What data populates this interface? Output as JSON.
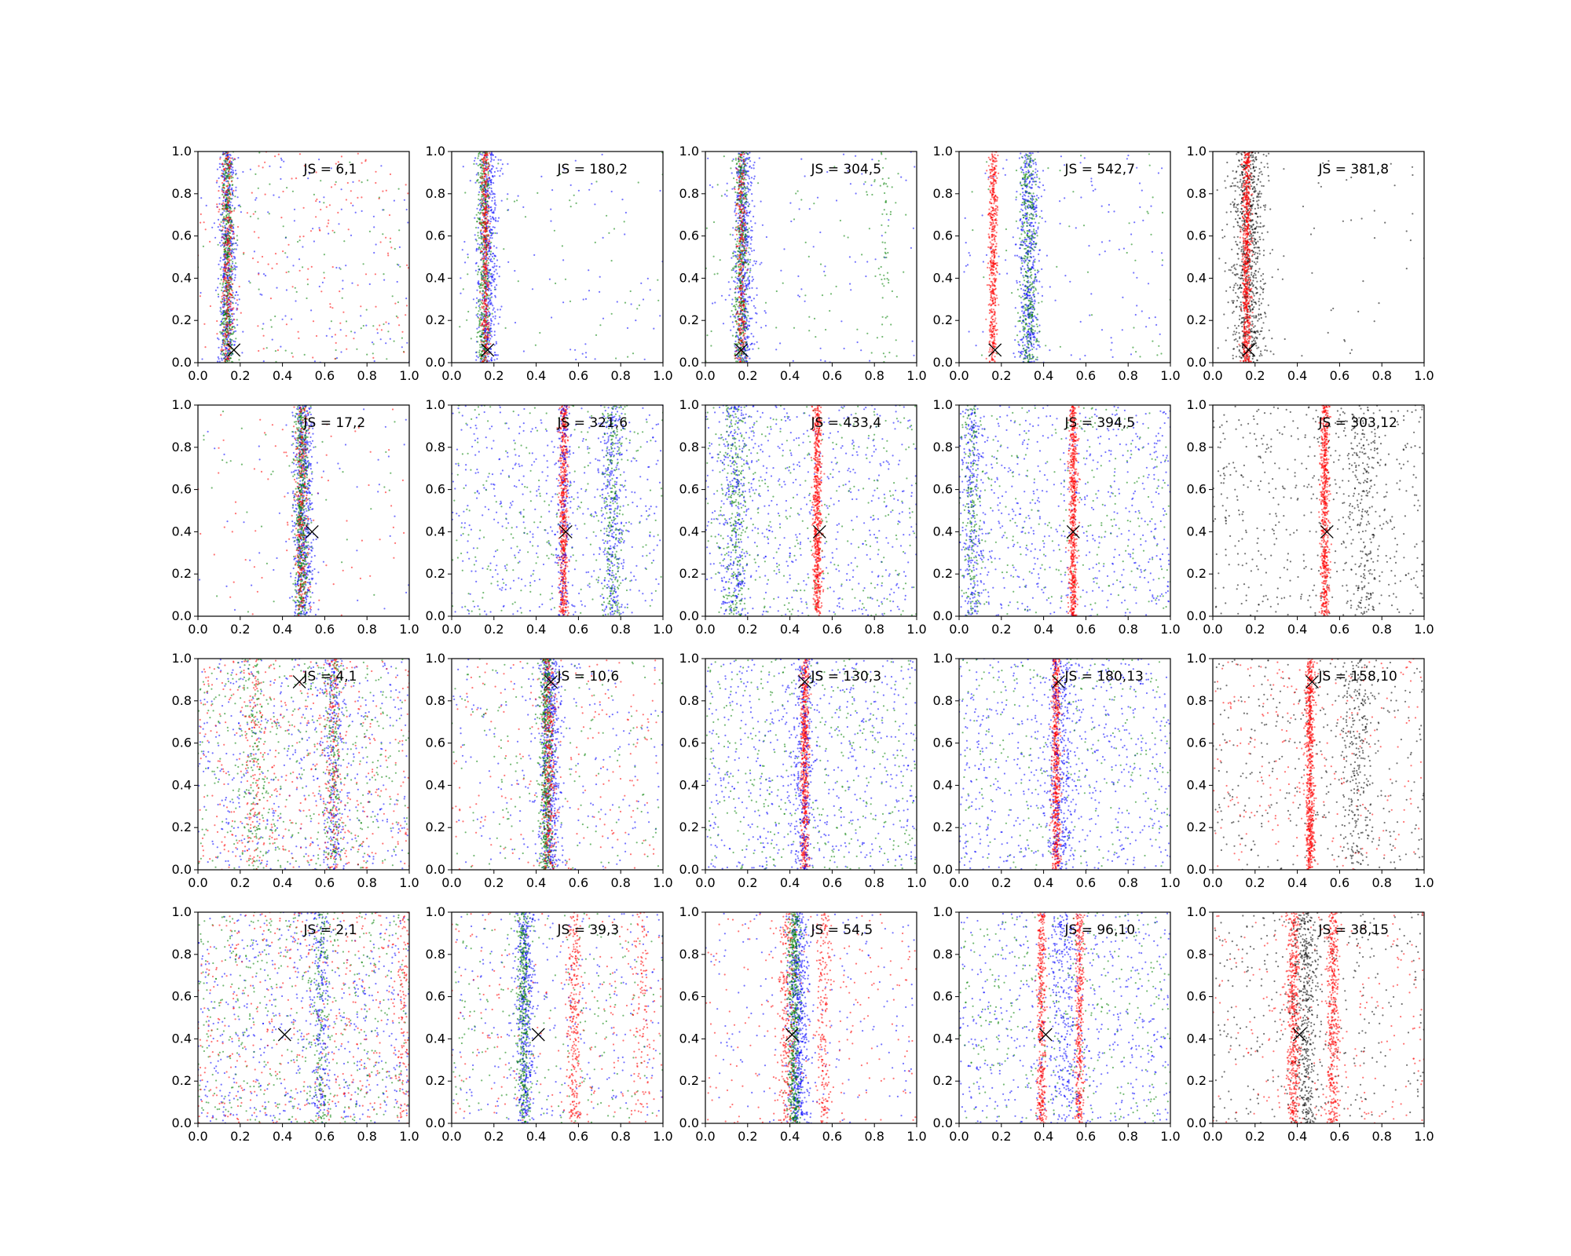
{
  "chart_data": {
    "type": "scatter",
    "rows": 4,
    "cols": 5,
    "xlim": [
      0,
      1
    ],
    "ylim": [
      0,
      1
    ],
    "xticks": [
      "0.0",
      "0.2",
      "0.4",
      "0.6",
      "0.8",
      "1.0"
    ],
    "yticks": [
      "0.0",
      "0.2",
      "0.4",
      "0.6",
      "0.8",
      "1.0"
    ],
    "grid": false,
    "colors": {
      "blue": "#0000ff",
      "green": "#008000",
      "red": "#ff0000",
      "black": "#000000"
    },
    "panels": [
      {
        "label": "JS = 6,1",
        "marker": [
          0.17,
          0.06
        ],
        "bands": [
          {
            "color": "blue",
            "center": 0.14,
            "width": 0.04,
            "n": 520
          },
          {
            "color": "green",
            "center": 0.14,
            "width": 0.03,
            "n": 480
          },
          {
            "color": "red",
            "center": 0.14,
            "width": 0.03,
            "n": 300
          }
        ],
        "background": [
          {
            "color": "blue",
            "n": 120
          },
          {
            "color": "green",
            "n": 90
          },
          {
            "color": "red",
            "n": 160
          }
        ]
      },
      {
        "label": "JS = 180,2",
        "marker": [
          0.17,
          0.06
        ],
        "bands": [
          {
            "color": "blue",
            "center": 0.17,
            "width": 0.05,
            "n": 560
          },
          {
            "color": "green",
            "center": 0.15,
            "width": 0.03,
            "n": 420
          },
          {
            "color": "red",
            "center": 0.16,
            "width": 0.02,
            "n": 380
          }
        ],
        "background": [
          {
            "color": "blue",
            "n": 80
          },
          {
            "color": "green",
            "n": 60
          }
        ]
      },
      {
        "label": "JS = 304,5",
        "marker": [
          0.17,
          0.06
        ],
        "bands": [
          {
            "color": "blue",
            "center": 0.18,
            "width": 0.05,
            "n": 600
          },
          {
            "color": "green",
            "center": 0.17,
            "width": 0.03,
            "n": 460
          },
          {
            "color": "red",
            "center": 0.17,
            "width": 0.02,
            "n": 260
          },
          {
            "color": "green",
            "center": 0.85,
            "width": 0.04,
            "n": 60
          }
        ],
        "background": [
          {
            "color": "blue",
            "n": 90
          },
          {
            "color": "green",
            "n": 70
          }
        ]
      },
      {
        "label": "JS = 542,7",
        "marker": [
          0.17,
          0.06
        ],
        "bands": [
          {
            "color": "red",
            "center": 0.16,
            "width": 0.02,
            "n": 520
          },
          {
            "color": "blue",
            "center": 0.33,
            "width": 0.05,
            "n": 520
          },
          {
            "color": "green",
            "center": 0.33,
            "width": 0.04,
            "n": 360
          }
        ],
        "background": [
          {
            "color": "blue",
            "n": 110
          },
          {
            "color": "green",
            "n": 50
          }
        ]
      },
      {
        "label": "JS = 381,8",
        "marker": [
          0.17,
          0.06
        ],
        "bands": [
          {
            "color": "black",
            "center": 0.17,
            "width": 0.08,
            "n": 820
          },
          {
            "color": "red",
            "center": 0.16,
            "width": 0.02,
            "n": 700
          }
        ],
        "background": [
          {
            "color": "black",
            "n": 60
          }
        ]
      },
      {
        "label": "JS = 17,2",
        "marker": [
          0.54,
          0.4
        ],
        "bands": [
          {
            "color": "blue",
            "center": 0.5,
            "width": 0.05,
            "n": 620
          },
          {
            "color": "green",
            "center": 0.49,
            "width": 0.03,
            "n": 540
          },
          {
            "color": "red",
            "center": 0.49,
            "width": 0.03,
            "n": 260
          }
        ],
        "background": [
          {
            "color": "red",
            "n": 70
          },
          {
            "color": "blue",
            "n": 40
          },
          {
            "color": "green",
            "n": 40
          }
        ]
      },
      {
        "label": "JS = 321,6",
        "marker": [
          0.54,
          0.4
        ],
        "bands": [
          {
            "color": "red",
            "center": 0.53,
            "width": 0.02,
            "n": 620
          },
          {
            "color": "blue",
            "center": 0.76,
            "width": 0.06,
            "n": 320
          },
          {
            "color": "green",
            "center": 0.76,
            "width": 0.05,
            "n": 220
          },
          {
            "color": "blue",
            "center": 0.53,
            "width": 0.04,
            "n": 180
          }
        ],
        "background": [
          {
            "color": "blue",
            "n": 420
          },
          {
            "color": "green",
            "n": 260
          }
        ]
      },
      {
        "label": "JS = 433,4",
        "marker": [
          0.54,
          0.4
        ],
        "bands": [
          {
            "color": "red",
            "center": 0.53,
            "width": 0.02,
            "n": 680
          },
          {
            "color": "green",
            "center": 0.14,
            "width": 0.06,
            "n": 260
          },
          {
            "color": "blue",
            "center": 0.14,
            "width": 0.07,
            "n": 260
          }
        ],
        "background": [
          {
            "color": "blue",
            "n": 520
          },
          {
            "color": "green",
            "n": 320
          }
        ]
      },
      {
        "label": "JS = 394,5",
        "marker": [
          0.54,
          0.4
        ],
        "bands": [
          {
            "color": "red",
            "center": 0.54,
            "width": 0.02,
            "n": 660
          },
          {
            "color": "blue",
            "center": 0.06,
            "width": 0.05,
            "n": 240
          },
          {
            "color": "green",
            "center": 0.06,
            "width": 0.04,
            "n": 160
          }
        ],
        "background": [
          {
            "color": "blue",
            "n": 600
          },
          {
            "color": "green",
            "n": 280
          }
        ]
      },
      {
        "label": "JS = 303,12",
        "marker": [
          0.54,
          0.4
        ],
        "bands": [
          {
            "color": "red",
            "center": 0.53,
            "width": 0.02,
            "n": 660
          },
          {
            "color": "black",
            "center": 0.72,
            "width": 0.08,
            "n": 220
          }
        ],
        "background": [
          {
            "color": "black",
            "n": 520
          }
        ]
      },
      {
        "label": "JS = 4,1",
        "marker": [
          0.48,
          0.89
        ],
        "bands": [
          {
            "color": "blue",
            "center": 0.64,
            "width": 0.05,
            "n": 220
          },
          {
            "color": "green",
            "center": 0.64,
            "width": 0.04,
            "n": 180
          },
          {
            "color": "red",
            "center": 0.64,
            "width": 0.04,
            "n": 160
          },
          {
            "color": "green",
            "center": 0.27,
            "width": 0.06,
            "n": 160
          },
          {
            "color": "red",
            "center": 0.27,
            "width": 0.06,
            "n": 120
          }
        ],
        "background": [
          {
            "color": "blue",
            "n": 500
          },
          {
            "color": "green",
            "n": 420
          },
          {
            "color": "red",
            "n": 420
          }
        ]
      },
      {
        "label": "JS = 10,6",
        "marker": [
          0.47,
          0.89
        ],
        "bands": [
          {
            "color": "blue",
            "center": 0.47,
            "width": 0.05,
            "n": 600
          },
          {
            "color": "green",
            "center": 0.45,
            "width": 0.03,
            "n": 520
          },
          {
            "color": "red",
            "center": 0.46,
            "width": 0.03,
            "n": 300
          }
        ],
        "background": [
          {
            "color": "blue",
            "n": 200
          },
          {
            "color": "green",
            "n": 160
          },
          {
            "color": "red",
            "n": 200
          }
        ]
      },
      {
        "label": "JS = 130,3",
        "marker": [
          0.47,
          0.89
        ],
        "bands": [
          {
            "color": "red",
            "center": 0.47,
            "width": 0.02,
            "n": 620
          },
          {
            "color": "blue",
            "center": 0.46,
            "width": 0.06,
            "n": 300
          }
        ],
        "background": [
          {
            "color": "blue",
            "n": 560
          },
          {
            "color": "green",
            "n": 380
          }
        ]
      },
      {
        "label": "JS = 180,13",
        "marker": [
          0.47,
          0.89
        ],
        "bands": [
          {
            "color": "red",
            "center": 0.46,
            "width": 0.02,
            "n": 640
          },
          {
            "color": "blue",
            "center": 0.48,
            "width": 0.07,
            "n": 360
          }
        ],
        "background": [
          {
            "color": "blue",
            "n": 620
          },
          {
            "color": "green",
            "n": 260
          }
        ]
      },
      {
        "label": "JS = 158,10",
        "marker": [
          0.47,
          0.89
        ],
        "bands": [
          {
            "color": "red",
            "center": 0.46,
            "width": 0.02,
            "n": 700
          },
          {
            "color": "black",
            "center": 0.68,
            "width": 0.08,
            "n": 260
          }
        ],
        "background": [
          {
            "color": "black",
            "n": 380
          },
          {
            "color": "red",
            "n": 240
          }
        ]
      },
      {
        "label": "JS = 2,1",
        "marker": [
          0.41,
          0.42
        ],
        "bands": [
          {
            "color": "blue",
            "center": 0.58,
            "width": 0.04,
            "n": 200
          },
          {
            "color": "green",
            "center": 0.58,
            "width": 0.04,
            "n": 160
          },
          {
            "color": "red",
            "center": 0.97,
            "width": 0.03,
            "n": 100
          }
        ],
        "background": [
          {
            "color": "blue",
            "n": 560
          },
          {
            "color": "green",
            "n": 460
          },
          {
            "color": "red",
            "n": 460
          }
        ]
      },
      {
        "label": "JS = 39,3",
        "marker": [
          0.41,
          0.42
        ],
        "bands": [
          {
            "color": "blue",
            "center": 0.35,
            "width": 0.04,
            "n": 460
          },
          {
            "color": "green",
            "center": 0.34,
            "width": 0.03,
            "n": 360
          },
          {
            "color": "red",
            "center": 0.58,
            "width": 0.03,
            "n": 280
          },
          {
            "color": "red",
            "center": 0.9,
            "width": 0.05,
            "n": 120
          }
        ],
        "background": [
          {
            "color": "blue",
            "n": 260
          },
          {
            "color": "green",
            "n": 220
          },
          {
            "color": "red",
            "n": 200
          }
        ]
      },
      {
        "label": "JS = 54,5",
        "marker": [
          0.41,
          0.42
        ],
        "bands": [
          {
            "color": "blue",
            "center": 0.44,
            "width": 0.05,
            "n": 620
          },
          {
            "color": "green",
            "center": 0.42,
            "width": 0.03,
            "n": 540
          },
          {
            "color": "red",
            "center": 0.39,
            "width": 0.04,
            "n": 260
          },
          {
            "color": "red",
            "center": 0.56,
            "width": 0.03,
            "n": 200
          }
        ],
        "background": [
          {
            "color": "blue",
            "n": 180
          },
          {
            "color": "red",
            "n": 200
          }
        ]
      },
      {
        "label": "JS = 96,10",
        "marker": [
          0.41,
          0.42
        ],
        "bands": [
          {
            "color": "red",
            "center": 0.39,
            "width": 0.02,
            "n": 420
          },
          {
            "color": "red",
            "center": 0.57,
            "width": 0.02,
            "n": 400
          },
          {
            "color": "blue",
            "center": 0.5,
            "width": 0.08,
            "n": 280
          }
        ],
        "background": [
          {
            "color": "blue",
            "n": 560
          },
          {
            "color": "green",
            "n": 340
          }
        ]
      },
      {
        "label": "JS = 38,15",
        "marker": [
          0.41,
          0.42
        ],
        "bands": [
          {
            "color": "red",
            "center": 0.38,
            "width": 0.03,
            "n": 520
          },
          {
            "color": "red",
            "center": 0.57,
            "width": 0.03,
            "n": 460
          },
          {
            "color": "black",
            "center": 0.44,
            "width": 0.06,
            "n": 460
          }
        ],
        "background": [
          {
            "color": "black",
            "n": 340
          },
          {
            "color": "red",
            "n": 220
          }
        ]
      }
    ]
  }
}
